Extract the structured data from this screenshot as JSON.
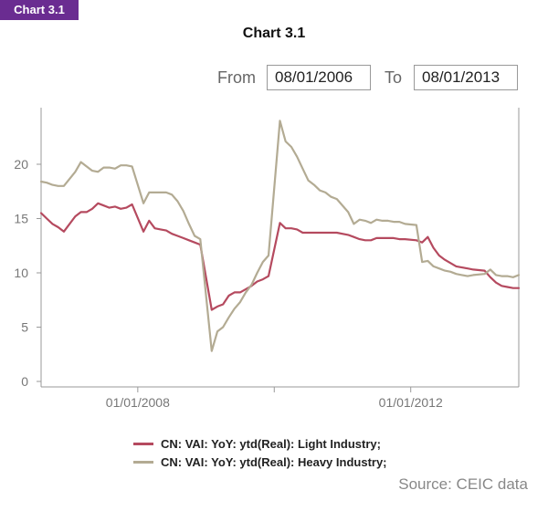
{
  "badge": "Chart 3.1",
  "range": {
    "from_label": "From",
    "from_value": "08/01/2006",
    "to_label": "To",
    "to_value": "08/01/2013"
  },
  "source": "Source: CEIC data",
  "colors": {
    "light": "#b54a5f",
    "heavy": "#b3ab93",
    "axis": "#999999",
    "tick_text": "#777777"
  },
  "chart_data": {
    "type": "line",
    "title": "Chart 3.1",
    "xlabel": "",
    "ylabel": "",
    "xlim": [
      "2006-08",
      "2013-08"
    ],
    "ylim": [
      0,
      25
    ],
    "yticks": [
      0,
      5,
      10,
      15,
      20
    ],
    "xticks": [
      {
        "date": "2008-01",
        "label": "01/01/2008"
      },
      {
        "date": "2012-01",
        "label": "01/01/2012"
      }
    ],
    "grid": false,
    "legend": "bottom",
    "x": [
      "2006-08",
      "2006-09",
      "2006-10",
      "2006-11",
      "2006-12",
      "2007-02",
      "2007-03",
      "2007-04",
      "2007-05",
      "2007-06",
      "2007-07",
      "2007-08",
      "2007-09",
      "2007-10",
      "2007-11",
      "2007-12",
      "2008-02",
      "2008-03",
      "2008-04",
      "2008-05",
      "2008-06",
      "2008-07",
      "2008-08",
      "2008-09",
      "2008-10",
      "2008-11",
      "2008-12",
      "2009-02",
      "2009-03",
      "2009-04",
      "2009-05",
      "2009-06",
      "2009-07",
      "2009-08",
      "2009-09",
      "2009-10",
      "2009-11",
      "2009-12",
      "2010-02",
      "2010-03",
      "2010-04",
      "2010-05",
      "2010-06",
      "2010-07",
      "2010-08",
      "2010-09",
      "2010-10",
      "2010-11",
      "2010-12",
      "2011-02",
      "2011-03",
      "2011-04",
      "2011-05",
      "2011-06",
      "2011-07",
      "2011-08",
      "2011-09",
      "2011-10",
      "2011-11",
      "2011-12",
      "2012-02",
      "2012-03",
      "2012-04",
      "2012-05",
      "2012-06",
      "2012-07",
      "2012-08",
      "2012-09",
      "2012-10",
      "2012-11",
      "2012-12",
      "2013-02",
      "2013-03",
      "2013-04",
      "2013-05",
      "2013-06",
      "2013-07",
      "2013-08"
    ],
    "series": [
      {
        "name": "CN: VAI: YoY: ytd(Real): Light Industry;",
        "values": [
          15.5,
          15.0,
          14.5,
          14.2,
          13.8,
          15.2,
          15.6,
          15.6,
          15.9,
          16.4,
          16.2,
          16.0,
          16.1,
          15.9,
          16.0,
          16.3,
          13.8,
          14.8,
          14.1,
          14.0,
          13.9,
          13.6,
          13.4,
          13.2,
          13.0,
          12.8,
          12.6,
          6.6,
          6.9,
          7.1,
          7.9,
          8.2,
          8.2,
          8.5,
          8.8,
          9.2,
          9.4,
          9.7,
          14.6,
          14.1,
          14.1,
          14.0,
          13.7,
          13.7,
          13.7,
          13.7,
          13.7,
          13.7,
          13.7,
          13.5,
          13.3,
          13.1,
          13.0,
          13.0,
          13.2,
          13.2,
          13.2,
          13.2,
          13.1,
          13.1,
          13.0,
          12.8,
          13.3,
          12.3,
          11.6,
          11.2,
          10.9,
          10.6,
          10.5,
          10.4,
          10.3,
          10.2,
          9.6,
          9.1,
          8.8,
          8.7,
          8.6,
          8.6
        ]
      },
      {
        "name": "CN: VAI: YoY: ytd(Real): Heavy Industry;",
        "values": [
          18.4,
          18.3,
          18.1,
          18.0,
          18.0,
          19.3,
          20.2,
          19.8,
          19.4,
          19.3,
          19.7,
          19.7,
          19.6,
          19.9,
          19.9,
          19.8,
          16.4,
          17.4,
          17.4,
          17.4,
          17.4,
          17.2,
          16.6,
          15.7,
          14.5,
          13.4,
          13.1,
          2.8,
          4.6,
          5.0,
          5.9,
          6.7,
          7.3,
          8.2,
          8.9,
          10.0,
          11.0,
          11.6,
          24.0,
          22.1,
          21.6,
          20.7,
          19.6,
          18.5,
          18.1,
          17.6,
          17.4,
          17.0,
          16.8,
          15.6,
          14.5,
          14.9,
          14.8,
          14.6,
          14.9,
          14.8,
          14.8,
          14.7,
          14.7,
          14.5,
          14.4,
          11.0,
          11.1,
          10.6,
          10.4,
          10.2,
          10.1,
          9.9,
          9.8,
          9.7,
          9.8,
          9.9,
          10.3,
          9.8,
          9.7,
          9.7,
          9.6,
          9.8
        ]
      }
    ]
  }
}
